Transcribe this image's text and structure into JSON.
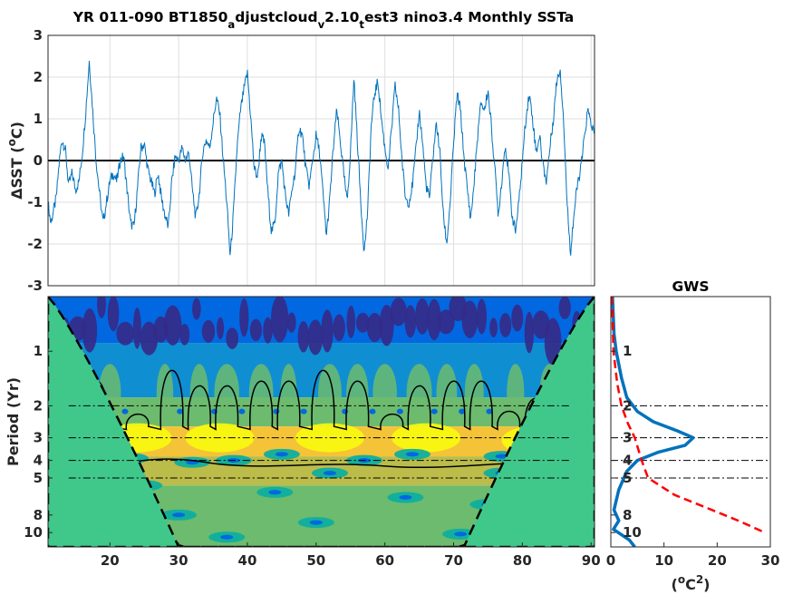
{
  "chart_data": [
    {
      "id": "time-series",
      "type": "line",
      "title_parts": [
        {
          "text": "YR 011-090 BT1850",
          "sub": false
        },
        {
          "text": "a",
          "sub": true
        },
        {
          "text": "djustcloud",
          "sub": false
        },
        {
          "text": "v",
          "sub": true
        },
        {
          "text": "2.10",
          "sub": false
        },
        {
          "text": "t",
          "sub": true
        },
        {
          "text": "est3 nino3.4 Monthly SSTa",
          "sub": false
        }
      ],
      "ylabel_parts": [
        {
          "text": "ΔSST (",
          "sup": false
        },
        {
          "text": "o",
          "sup": true
        },
        {
          "text": "C)",
          "sup": false
        }
      ],
      "xlim": [
        11,
        90.5
      ],
      "ylim": [
        -3,
        3
      ],
      "yticks": [
        "-3",
        "-2",
        "-1",
        "0",
        "1",
        "2",
        "3"
      ],
      "xgrid": [
        20,
        30,
        40,
        50,
        60,
        70,
        80,
        90
      ],
      "grid": true,
      "line_color": "#0072BD",
      "zero_line_color": "#000000",
      "keypoints": [
        [
          11.0,
          -1.0
        ],
        [
          11.4,
          -1.5
        ],
        [
          11.8,
          -1.2
        ],
        [
          12.2,
          -0.9
        ],
        [
          12.6,
          -0.1
        ],
        [
          13.0,
          0.5
        ],
        [
          13.5,
          0.3
        ],
        [
          14.0,
          -0.6
        ],
        [
          14.5,
          -0.3
        ],
        [
          15.0,
          -0.7
        ],
        [
          15.5,
          -0.5
        ],
        [
          16.0,
          0.2
        ],
        [
          16.5,
          1.2
        ],
        [
          17.0,
          2.4
        ],
        [
          17.5,
          1.2
        ],
        [
          18.0,
          0.0
        ],
        [
          18.5,
          -0.8
        ],
        [
          19.0,
          -1.5
        ],
        [
          19.5,
          -1.0
        ],
        [
          20.0,
          -0.5
        ],
        [
          20.5,
          -0.3
        ],
        [
          21.0,
          -0.5
        ],
        [
          21.5,
          0.0
        ],
        [
          22.0,
          0.1
        ],
        [
          22.5,
          -0.7
        ],
        [
          23.0,
          -1.5
        ],
        [
          23.5,
          -1.6
        ],
        [
          24.0,
          -0.7
        ],
        [
          24.5,
          0.3
        ],
        [
          25.0,
          0.4
        ],
        [
          25.5,
          -0.2
        ],
        [
          26.0,
          -0.5
        ],
        [
          26.5,
          -0.8
        ],
        [
          27.0,
          -0.3
        ],
        [
          27.5,
          -0.9
        ],
        [
          28.0,
          -1.3
        ],
        [
          28.5,
          -1.6
        ],
        [
          29.0,
          -0.5
        ],
        [
          29.5,
          0.1
        ],
        [
          30.0,
          0.0
        ],
        [
          30.5,
          0.3
        ],
        [
          31.0,
          0.0
        ],
        [
          31.5,
          0.2
        ],
        [
          32.0,
          -0.7
        ],
        [
          32.5,
          -1.4
        ],
        [
          33.0,
          -0.8
        ],
        [
          33.5,
          0.2
        ],
        [
          34.0,
          0.5
        ],
        [
          34.5,
          0.3
        ],
        [
          35.0,
          0.9
        ],
        [
          35.5,
          1.5
        ],
        [
          36.0,
          1.1
        ],
        [
          36.5,
          0.0
        ],
        [
          37.0,
          -1.0
        ],
        [
          37.5,
          -2.3
        ],
        [
          38.0,
          -1.2
        ],
        [
          38.5,
          0.3
        ],
        [
          39.0,
          1.2
        ],
        [
          39.5,
          1.7
        ],
        [
          40.0,
          2.1
        ],
        [
          40.5,
          1.0
        ],
        [
          41.0,
          -0.2
        ],
        [
          41.5,
          -0.4
        ],
        [
          42.0,
          0.6
        ],
        [
          42.5,
          0.4
        ],
        [
          43.0,
          -0.8
        ],
        [
          43.5,
          -1.7
        ],
        [
          44.0,
          -1.5
        ],
        [
          44.5,
          -0.3
        ],
        [
          45.0,
          0.0
        ],
        [
          45.5,
          -0.8
        ],
        [
          46.0,
          -1.3
        ],
        [
          46.5,
          -0.7
        ],
        [
          47.0,
          -0.2
        ],
        [
          47.5,
          0.8
        ],
        [
          48.0,
          0.6
        ],
        [
          48.5,
          -0.2
        ],
        [
          49.0,
          -0.6
        ],
        [
          49.5,
          0.0
        ],
        [
          50.0,
          0.6
        ],
        [
          50.5,
          0.2
        ],
        [
          51.0,
          -0.8
        ],
        [
          51.5,
          -1.8
        ],
        [
          52.0,
          -0.9
        ],
        [
          52.5,
          0.3
        ],
        [
          53.0,
          1.2
        ],
        [
          53.5,
          0.5
        ],
        [
          54.0,
          -0.3
        ],
        [
          54.5,
          -1.0
        ],
        [
          55.0,
          0.2
        ],
        [
          55.5,
          2.0
        ],
        [
          56.0,
          0.5
        ],
        [
          56.5,
          -1.0
        ],
        [
          57.0,
          -2.2
        ],
        [
          57.5,
          -1.2
        ],
        [
          58.0,
          0.8
        ],
        [
          58.5,
          1.6
        ],
        [
          59.0,
          1.9
        ],
        [
          59.5,
          1.0
        ],
        [
          60.0,
          0.3
        ],
        [
          60.5,
          -0.2
        ],
        [
          61.0,
          0.8
        ],
        [
          61.5,
          1.8
        ],
        [
          62.0,
          1.2
        ],
        [
          62.5,
          0.0
        ],
        [
          63.0,
          -0.9
        ],
        [
          63.5,
          -1.0
        ],
        [
          64.0,
          -0.6
        ],
        [
          64.5,
          0.2
        ],
        [
          65.0,
          1.2
        ],
        [
          65.5,
          0.4
        ],
        [
          66.0,
          -0.6
        ],
        [
          66.5,
          -0.9
        ],
        [
          67.0,
          0.1
        ],
        [
          67.5,
          0.9
        ],
        [
          68.0,
          0.2
        ],
        [
          68.5,
          -1.3
        ],
        [
          69.0,
          -2.0
        ],
        [
          69.5,
          -1.0
        ],
        [
          70.0,
          0.4
        ],
        [
          70.5,
          1.6
        ],
        [
          71.0,
          1.2
        ],
        [
          71.5,
          0.1
        ],
        [
          72.0,
          -0.7
        ],
        [
          72.5,
          -1.4
        ],
        [
          73.0,
          -0.5
        ],
        [
          73.5,
          0.6
        ],
        [
          74.0,
          1.4
        ],
        [
          74.5,
          1.2
        ],
        [
          75.0,
          1.7
        ],
        [
          75.5,
          0.8
        ],
        [
          76.0,
          -0.2
        ],
        [
          76.5,
          -1.3
        ],
        [
          77.0,
          -0.5
        ],
        [
          77.5,
          0.4
        ],
        [
          78.0,
          -0.3
        ],
        [
          78.5,
          -1.3
        ],
        [
          79.0,
          -1.7
        ],
        [
          79.5,
          -1.0
        ],
        [
          80.0,
          0.0
        ],
        [
          80.5,
          1.0
        ],
        [
          81.0,
          1.6
        ],
        [
          81.5,
          1.0
        ],
        [
          82.0,
          0.2
        ],
        [
          82.5,
          0.6
        ],
        [
          83.0,
          -0.1
        ],
        [
          83.5,
          -0.5
        ],
        [
          84.0,
          0.3
        ],
        [
          84.5,
          1.0
        ],
        [
          85.0,
          1.9
        ],
        [
          85.5,
          2.2
        ],
        [
          86.0,
          1.0
        ],
        [
          86.5,
          -1.0
        ],
        [
          87.0,
          -2.2
        ],
        [
          87.5,
          -1.3
        ],
        [
          88.0,
          -0.6
        ],
        [
          88.5,
          -0.2
        ],
        [
          89.0,
          0.5
        ],
        [
          89.5,
          1.2
        ],
        [
          90.0,
          0.9
        ],
        [
          90.5,
          0.6
        ]
      ]
    },
    {
      "id": "wavelet-power",
      "type": "heatmap",
      "ylabel": "Period (Yr)",
      "xlim": [
        11,
        90.5
      ],
      "ylim": [
        0.5,
        12
      ],
      "y_scale": "log",
      "xticks": [
        "20",
        "30",
        "40",
        "50",
        "60",
        "70",
        "80",
        "90"
      ],
      "yticks": [
        "1",
        "2",
        "3",
        "4",
        "5",
        "8",
        "10"
      ],
      "ytick_values": [
        1,
        2,
        3,
        4,
        5,
        8,
        10
      ],
      "reference_periods": [
        2,
        3,
        4,
        5
      ],
      "colormap": [
        "#352a87",
        "#0268e1",
        "#108ed2",
        "#0fae9f",
        "#6cbb6e",
        "#bbbc4a",
        "#f5c337",
        "#f9fb0e"
      ],
      "cone_of_influence_color": "#40c88a",
      "bands": [
        {
          "period_range": [
            0.5,
            0.9
          ],
          "level": 0.08
        },
        {
          "period_range": [
            0.9,
            1.8
          ],
          "level": 0.3
        },
        {
          "period_range": [
            1.8,
            2.6
          ],
          "level": 0.62
        },
        {
          "period_range": [
            2.6,
            3.8
          ],
          "level": 0.9
        },
        {
          "period_range": [
            3.8,
            5.5
          ],
          "level": 0.72
        },
        {
          "period_range": [
            5.5,
            12
          ],
          "level": 0.6
        }
      ]
    },
    {
      "id": "global-wavelet-spectrum",
      "type": "line",
      "title": "GWS",
      "xlabel_parts": [
        {
          "text": "(",
          "sup": false
        },
        {
          "text": "o",
          "sup": true
        },
        {
          "text": "C",
          "sup": false
        },
        {
          "text": "2",
          "sup": true
        },
        {
          "text": ")",
          "sup": false
        }
      ],
      "xlim": [
        0,
        30
      ],
      "ylim": [
        0.5,
        12
      ],
      "y_scale": "log",
      "xticks": [
        "0",
        "10",
        "20",
        "30"
      ],
      "xtick_values": [
        0,
        10,
        20,
        30
      ],
      "yticks": [
        "1",
        "2",
        "3",
        "4",
        "5",
        "8",
        "10"
      ],
      "ytick_values": [
        1,
        2,
        3,
        4,
        5,
        8,
        10
      ],
      "reference_periods": [
        2,
        3,
        4,
        5
      ],
      "series": [
        {
          "color": "#0072BD",
          "style": "solid",
          "points": [
            [
              0.3,
              0.5
            ],
            [
              0.6,
              0.8
            ],
            [
              1.0,
              1.0
            ],
            [
              2.0,
              1.4
            ],
            [
              3.0,
              1.8
            ],
            [
              5.0,
              2.15
            ],
            [
              8.0,
              2.45
            ],
            [
              12.5,
              2.75
            ],
            [
              15.5,
              3.0
            ],
            [
              14.0,
              3.3
            ],
            [
              9.0,
              3.6
            ],
            [
              5.0,
              4.0
            ],
            [
              3.0,
              4.6
            ],
            [
              1.5,
              5.8
            ],
            [
              0.6,
              7.5
            ],
            [
              1.5,
              8.6
            ],
            [
              0.5,
              9.6
            ],
            [
              3.5,
              11.0
            ],
            [
              4.5,
              12.0
            ]
          ]
        },
        {
          "color": "#ff0000",
          "style": "dashed",
          "points": [
            [
              0.2,
              0.5
            ],
            [
              0.5,
              1.0
            ],
            [
              1.2,
              1.5
            ],
            [
              2.0,
              2.0
            ],
            [
              3.2,
              2.5
            ],
            [
              4.5,
              3.0
            ],
            [
              5.8,
              4.0
            ],
            [
              7.0,
              5.0
            ],
            [
              12.0,
              6.2
            ],
            [
              18.0,
              7.3
            ],
            [
              24.0,
              8.6
            ],
            [
              29.0,
              10.0
            ]
          ]
        }
      ]
    }
  ]
}
